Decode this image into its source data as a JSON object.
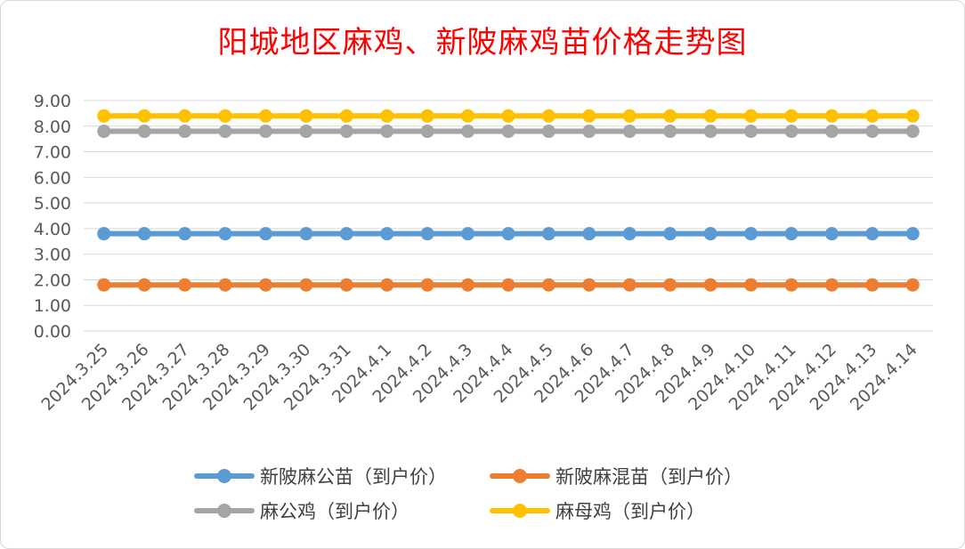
{
  "chart_data": {
    "type": "line",
    "title": "阳城地区麻鸡、新陂麻鸡苗价格走势图",
    "xlabel": "",
    "ylabel": "",
    "ylim": [
      0,
      9
    ],
    "y_ticks": [
      "0.00",
      "1.00",
      "2.00",
      "3.00",
      "4.00",
      "5.00",
      "6.00",
      "7.00",
      "8.00",
      "9.00"
    ],
    "grid": true,
    "legend_position": "bottom",
    "categories": [
      "2024.3.25",
      "2024.3.26",
      "2024.3.27",
      "2024.3.28",
      "2024.3.29",
      "2024.3.30",
      "2024.3.31",
      "2024.4.1",
      "2024.4.2",
      "2024.4.3",
      "2024.4.4",
      "2024.4.5",
      "2024.4.6",
      "2024.4.7",
      "2024.4.8",
      "2024.4.9",
      "2024.4.10",
      "2024.4.11",
      "2024.4.12",
      "2024.4.13",
      "2024.4.14"
    ],
    "series": [
      {
        "name": "新陂麻公苗（到户价）",
        "color": "#5b9bd5",
        "values": [
          3.8,
          3.8,
          3.8,
          3.8,
          3.8,
          3.8,
          3.8,
          3.8,
          3.8,
          3.8,
          3.8,
          3.8,
          3.8,
          3.8,
          3.8,
          3.8,
          3.8,
          3.8,
          3.8,
          3.8,
          3.8
        ]
      },
      {
        "name": "新陂麻混苗（到户价）",
        "color": "#ed7d31",
        "values": [
          1.8,
          1.8,
          1.8,
          1.8,
          1.8,
          1.8,
          1.8,
          1.8,
          1.8,
          1.8,
          1.8,
          1.8,
          1.8,
          1.8,
          1.8,
          1.8,
          1.8,
          1.8,
          1.8,
          1.8,
          1.8
        ]
      },
      {
        "name": "麻公鸡（到户价）",
        "color": "#a5a5a5",
        "values": [
          7.8,
          7.8,
          7.8,
          7.8,
          7.8,
          7.8,
          7.8,
          7.8,
          7.8,
          7.8,
          7.8,
          7.8,
          7.8,
          7.8,
          7.8,
          7.8,
          7.8,
          7.8,
          7.8,
          7.8,
          7.8
        ]
      },
      {
        "name": "麻母鸡（到户价）",
        "color": "#ffc000",
        "values": [
          8.4,
          8.4,
          8.4,
          8.4,
          8.4,
          8.4,
          8.4,
          8.4,
          8.4,
          8.4,
          8.4,
          8.4,
          8.4,
          8.4,
          8.4,
          8.4,
          8.4,
          8.4,
          8.4,
          8.4,
          8.4
        ]
      }
    ]
  }
}
